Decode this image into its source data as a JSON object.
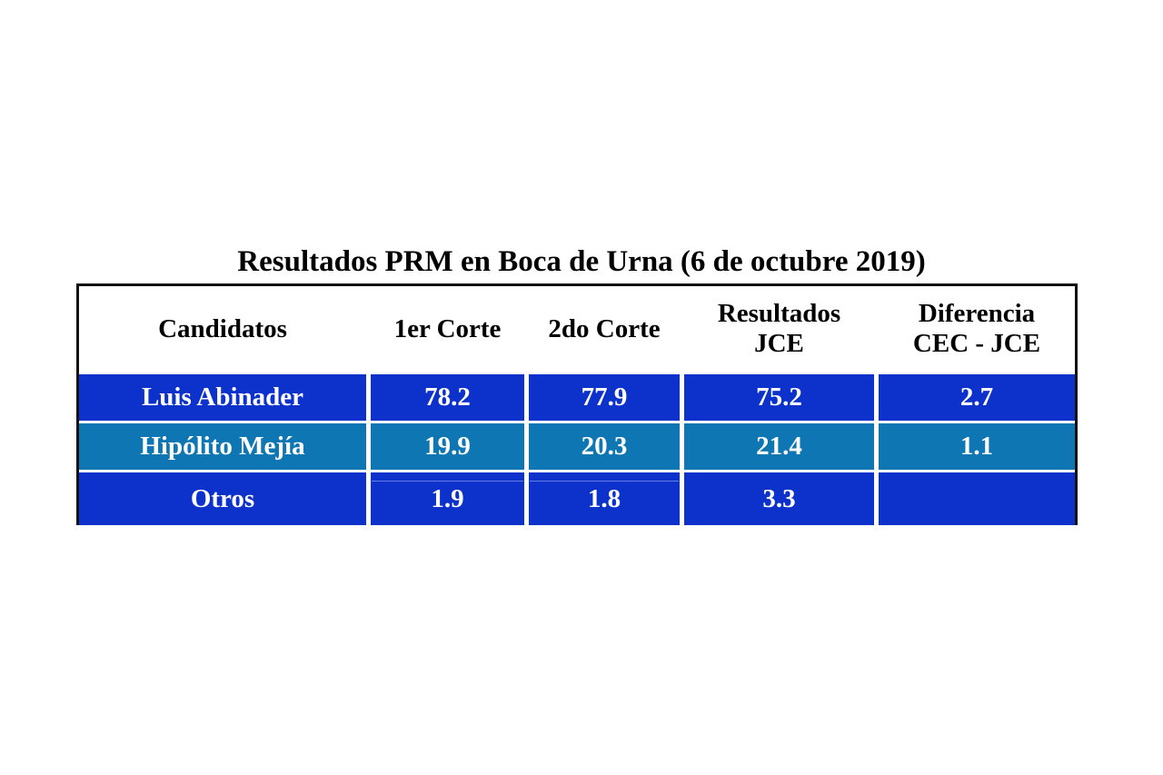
{
  "title": "Resultados PRM en Boca de Urna (6 de octubre 2019)",
  "table": {
    "headers": [
      "Candidatos",
      "1er Corte",
      "2do Corte",
      "Resultados\nJCE",
      "Diferencia\nCEC - JCE"
    ],
    "rows": [
      {
        "cells": [
          "Luis Abinader",
          "78.2",
          "77.9",
          "75.2",
          "2.7"
        ]
      },
      {
        "cells": [
          "Hipólito Mejía",
          "19.9",
          "20.3",
          "21.4",
          "1.1"
        ]
      },
      {
        "cells": [
          "Otros",
          "1.9",
          "1.8",
          "3.3",
          ""
        ]
      }
    ]
  },
  "colors": {
    "background": "#ffffff",
    "border": "#111111",
    "row_blue": "#0c32cb",
    "row_teal": "#0e76b3",
    "row_text": "#ffffff",
    "header_text": "#000000",
    "title_text": "#000000"
  },
  "chart_data": {
    "type": "table",
    "title": "Resultados PRM en Boca de Urna (6 de octubre 2019)",
    "columns": [
      "Candidatos",
      "1er Corte",
      "2do Corte",
      "Resultados JCE",
      "Diferencia CEC - JCE"
    ],
    "rows": [
      [
        "Luis Abinader",
        78.2,
        77.9,
        75.2,
        2.7
      ],
      [
        "Hipólito Mejía",
        19.9,
        20.3,
        21.4,
        1.1
      ],
      [
        "Otros",
        1.9,
        1.8,
        3.3,
        null
      ]
    ],
    "layout_hints": {
      "header_background": "#ffffff",
      "row_backgrounds": [
        "#0c32cb",
        "#0e76b3",
        "#0c32cb"
      ],
      "gridlines": "white gaps between cells, black outer border (no bottom border)"
    }
  }
}
